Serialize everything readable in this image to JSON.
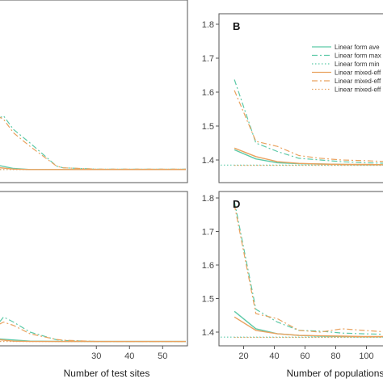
{
  "chart_data": [
    {
      "panel": "",
      "type": "line",
      "xlabel": "",
      "ylabel": "",
      "x_ticks": [],
      "y_ticks": [],
      "xlim": [
        -2,
        57
      ],
      "ylim": [
        1.34,
        1.82
      ],
      "series": [
        {
          "style": "lf_avg",
          "x": [
            -2,
            0,
            5,
            10,
            20,
            30,
            40,
            50,
            57
          ],
          "y": [
            1.39,
            1.385,
            1.375,
            1.372,
            1.372,
            1.372,
            1.372,
            1.372,
            1.372
          ]
        },
        {
          "style": "lf_max",
          "x": [
            -2,
            0,
            2,
            5,
            10,
            18,
            20,
            30,
            40,
            50,
            57
          ],
          "y": [
            1.55,
            1.52,
            1.53,
            1.49,
            1.45,
            1.382,
            1.377,
            1.373,
            1.373,
            1.373,
            1.373
          ]
        },
        {
          "style": "lf_min",
          "x": [
            -2,
            10,
            20,
            30,
            40,
            50,
            57
          ],
          "y": [
            1.372,
            1.372,
            1.372,
            1.372,
            1.372,
            1.372,
            1.372
          ]
        },
        {
          "style": "me_avg",
          "x": [
            -2,
            5,
            10,
            20,
            30,
            40,
            50,
            57
          ],
          "y": [
            1.38,
            1.373,
            1.372,
            1.372,
            1.372,
            1.372,
            1.372,
            1.372
          ]
        },
        {
          "style": "me_max",
          "x": [
            -2,
            0,
            2,
            5,
            10,
            18,
            20,
            30,
            40,
            50,
            57
          ],
          "y": [
            1.56,
            1.53,
            1.52,
            1.48,
            1.44,
            1.382,
            1.377,
            1.373,
            1.373,
            1.373,
            1.373
          ]
        },
        {
          "style": "me_min",
          "x": [
            -2,
            10,
            20,
            30,
            40,
            50,
            57
          ],
          "y": [
            1.372,
            1.372,
            1.372,
            1.372,
            1.372,
            1.372,
            1.372
          ]
        }
      ]
    },
    {
      "panel": "B",
      "type": "line",
      "xlabel": "",
      "ylabel": "",
      "x_ticks": [],
      "y_ticks": [
        "1.4",
        "1.5",
        "1.6",
        "1.7",
        "1.8"
      ],
      "xlim": [
        5,
        115
      ],
      "ylim": [
        1.36,
        1.82
      ],
      "series": [
        {
          "style": "lf_avg",
          "x": [
            14,
            28,
            42,
            56,
            70,
            84,
            98,
            115
          ],
          "y": [
            1.43,
            1.403,
            1.392,
            1.389,
            1.388,
            1.387,
            1.386,
            1.386
          ]
        },
        {
          "style": "lf_max",
          "x": [
            14,
            28,
            42,
            56,
            70,
            84,
            98,
            115
          ],
          "y": [
            1.637,
            1.45,
            1.425,
            1.405,
            1.4,
            1.395,
            1.392,
            1.39
          ]
        },
        {
          "style": "lf_min",
          "x": [
            5,
            14,
            28,
            42,
            56,
            70,
            84,
            98,
            115
          ],
          "y": [
            1.385,
            1.385,
            1.385,
            1.385,
            1.385,
            1.385,
            1.385,
            1.385,
            1.385
          ]
        },
        {
          "style": "me_avg",
          "x": [
            14,
            28,
            42,
            56,
            70,
            84,
            98,
            115
          ],
          "y": [
            1.435,
            1.41,
            1.395,
            1.39,
            1.388,
            1.387,
            1.387,
            1.386
          ]
        },
        {
          "style": "me_max",
          "x": [
            14,
            28,
            42,
            56,
            70,
            84,
            98,
            115
          ],
          "y": [
            1.605,
            1.455,
            1.44,
            1.413,
            1.405,
            1.4,
            1.398,
            1.395
          ]
        },
        {
          "style": "me_min",
          "x": [
            14,
            28,
            42,
            56,
            70,
            84,
            98,
            115
          ],
          "y": [
            1.384,
            1.384,
            1.384,
            1.384,
            1.384,
            1.384,
            1.384,
            1.384
          ]
        }
      ],
      "legend": {
        "placement": "top-right",
        "entries": [
          {
            "style": "lf_avg",
            "label": "Linear form ave"
          },
          {
            "style": "lf_max",
            "label": "Linear form max"
          },
          {
            "style": "lf_min",
            "label": "Linear form min"
          },
          {
            "style": "me_avg",
            "label": "Linear mixed-eff"
          },
          {
            "style": "me_max",
            "label": "Linear mixed-eff"
          },
          {
            "style": "me_min",
            "label": "Linear mixed-eff"
          }
        ]
      }
    },
    {
      "panel": "",
      "type": "line",
      "xlabel": "Number of test sites",
      "ylabel": "",
      "x_ticks": [
        "30",
        "40",
        "50"
      ],
      "y_ticks": [],
      "xlim": [
        -2,
        57
      ],
      "ylim": [
        1.34,
        1.82
      ],
      "series": [
        {
          "style": "lf_avg",
          "x": [
            -2,
            0,
            10,
            20,
            30,
            40,
            50,
            57
          ],
          "y": [
            1.39,
            1.38,
            1.373,
            1.372,
            1.372,
            1.372,
            1.372,
            1.372
          ]
        },
        {
          "style": "lf_max",
          "x": [
            -2,
            0,
            2,
            5,
            10,
            18,
            20,
            30,
            40,
            50,
            57
          ],
          "y": [
            1.43,
            1.42,
            1.445,
            1.43,
            1.4,
            1.377,
            1.375,
            1.372,
            1.372,
            1.372,
            1.372
          ]
        },
        {
          "style": "lf_min",
          "x": [
            -2,
            10,
            20,
            30,
            40,
            50,
            57
          ],
          "y": [
            1.372,
            1.372,
            1.372,
            1.372,
            1.372,
            1.372,
            1.372
          ]
        },
        {
          "style": "me_avg",
          "x": [
            -2,
            5,
            10,
            20,
            30,
            40,
            50,
            57
          ],
          "y": [
            1.38,
            1.373,
            1.372,
            1.372,
            1.372,
            1.372,
            1.372,
            1.372
          ]
        },
        {
          "style": "me_max",
          "x": [
            -2,
            0,
            2,
            5,
            10,
            18,
            20,
            30,
            40,
            50,
            57
          ],
          "y": [
            1.44,
            1.42,
            1.43,
            1.42,
            1.395,
            1.378,
            1.376,
            1.372,
            1.372,
            1.372,
            1.372
          ]
        },
        {
          "style": "me_min",
          "x": [
            -2,
            10,
            20,
            30,
            40,
            50,
            57
          ],
          "y": [
            1.372,
            1.372,
            1.372,
            1.372,
            1.372,
            1.372,
            1.372
          ]
        }
      ]
    },
    {
      "panel": "D",
      "type": "line",
      "xlabel": "Number of populations",
      "ylabel": "",
      "x_ticks": [
        "20",
        "40",
        "60",
        "80",
        "100"
      ],
      "y_ticks": [
        "1.4",
        "1.5",
        "1.6",
        "1.7",
        "1.8"
      ],
      "xlim": [
        5,
        115
      ],
      "ylim": [
        1.36,
        1.82
      ],
      "series": [
        {
          "style": "lf_avg",
          "x": [
            14,
            28,
            42,
            56,
            70,
            84,
            98,
            115
          ],
          "y": [
            1.462,
            1.41,
            1.395,
            1.39,
            1.388,
            1.387,
            1.386,
            1.386
          ]
        },
        {
          "style": "lf_max",
          "x": [
            14,
            28,
            42,
            56,
            70,
            84,
            98,
            115
          ],
          "y": [
            1.79,
            1.468,
            1.43,
            1.405,
            1.403,
            1.397,
            1.395,
            1.393
          ]
        },
        {
          "style": "lf_min",
          "x": [
            5,
            14,
            28,
            42,
            56,
            70,
            84,
            98,
            115
          ],
          "y": [
            1.385,
            1.385,
            1.385,
            1.385,
            1.385,
            1.385,
            1.385,
            1.385,
            1.385
          ]
        },
        {
          "style": "me_avg",
          "x": [
            14,
            28,
            42,
            56,
            70,
            84,
            98,
            115
          ],
          "y": [
            1.445,
            1.405,
            1.395,
            1.39,
            1.389,
            1.388,
            1.387,
            1.387
          ]
        },
        {
          "style": "me_max",
          "x": [
            14,
            28,
            42,
            56,
            70,
            84,
            98,
            115
          ],
          "y": [
            1.78,
            1.455,
            1.44,
            1.405,
            1.4,
            1.41,
            1.405,
            1.4
          ]
        },
        {
          "style": "me_min",
          "x": [
            14,
            28,
            42,
            56,
            70,
            84,
            98,
            115
          ],
          "y": [
            1.384,
            1.384,
            1.384,
            1.384,
            1.384,
            1.384,
            1.384,
            1.384
          ]
        }
      ]
    }
  ],
  "styles": {
    "lf_avg": {
      "color": "#5cc9a7",
      "dash": "",
      "width": 1.4
    },
    "lf_max": {
      "color": "#5cc9a7",
      "dash": "7 3 2 3",
      "width": 1.2
    },
    "lf_min": {
      "color": "#5cc9a7",
      "dash": "1.5 2.5",
      "width": 1.1
    },
    "me_avg": {
      "color": "#e9a25f",
      "dash": "",
      "width": 1.4
    },
    "me_max": {
      "color": "#e9a25f",
      "dash": "7 3 2 3",
      "width": 1.2
    },
    "me_min": {
      "color": "#e9a25f",
      "dash": "1.5 2.5",
      "width": 1.1
    }
  },
  "colors": {
    "panel_border": "#555555",
    "background": "#ffffff"
  }
}
